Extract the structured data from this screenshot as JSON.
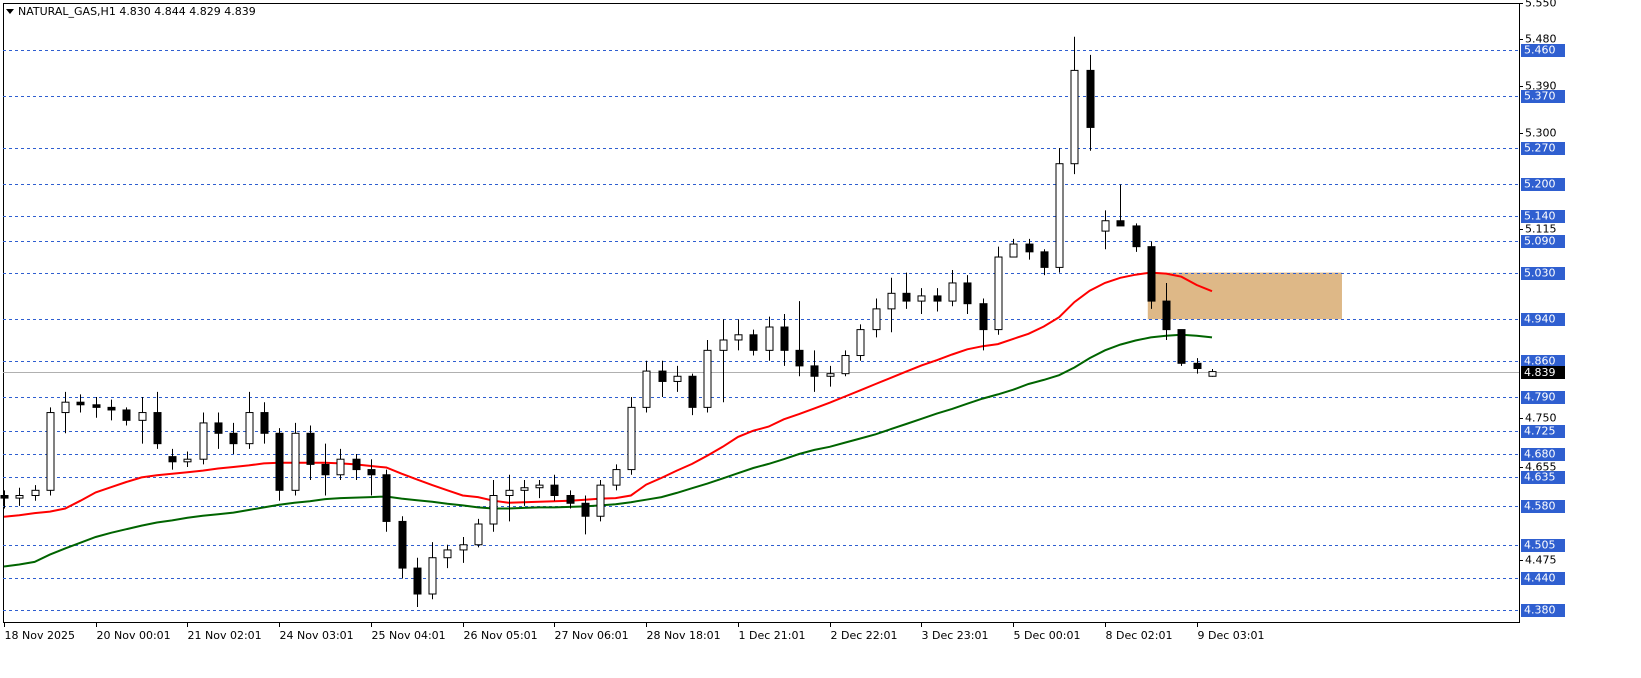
{
  "chart_data": {
    "type": "candlestick",
    "header": "NATURAL_GAS,H1  4.830 4.844 4.829 4.839",
    "categories": [
      "18 Nov 2025",
      null,
      null,
      null,
      null,
      null,
      "20 Nov 00:01",
      null,
      null,
      null,
      null,
      null,
      "21 Nov 02:01",
      null,
      null,
      null,
      null,
      null,
      "24 Nov 03:01",
      null,
      null,
      null,
      null,
      null,
      "25 Nov 04:01",
      null,
      null,
      null,
      null,
      null,
      "26 Nov 05:01",
      null,
      null,
      null,
      null,
      null,
      "27 Nov 06:01",
      null,
      null,
      null,
      null,
      null,
      "28 Nov 18:01",
      null,
      null,
      null,
      null,
      null,
      "1 Dec 21:01",
      null,
      null,
      null,
      null,
      null,
      "2 Dec 22:01",
      null,
      null,
      null,
      null,
      null,
      "3 Dec 23:01",
      null,
      null,
      null,
      null,
      null,
      "5 Dec 00:01",
      null,
      null,
      null,
      null,
      null,
      "8 Dec 02:01",
      null,
      null,
      null,
      null,
      null,
      "9 Dec 03:01",
      null
    ],
    "open": [
      4.6,
      4.595,
      4.6,
      4.61,
      4.76,
      4.78,
      4.775,
      4.77,
      4.765,
      4.745,
      4.76,
      4.675,
      4.665,
      4.67,
      4.74,
      4.72,
      4.7,
      4.76,
      4.72,
      4.61,
      4.72,
      4.66,
      4.64,
      4.67,
      4.65,
      4.64,
      4.55,
      4.46,
      4.41,
      4.48,
      4.495,
      4.505,
      4.545,
      4.6,
      4.61,
      4.615,
      4.62,
      4.6,
      4.585,
      4.56,
      4.62,
      4.65,
      4.77,
      4.84,
      4.82,
      4.83,
      4.77,
      4.88,
      4.9,
      4.91,
      4.88,
      4.925,
      4.88,
      4.85,
      4.83,
      4.835,
      4.87,
      4.92,
      4.96,
      4.99,
      4.975,
      4.985,
      4.975,
      5.01,
      4.97,
      4.92,
      5.06,
      5.085,
      5.07,
      5.04,
      5.24,
      5.42,
      5.11,
      5.13,
      5.12,
      5.08,
      4.975,
      4.92,
      4.855,
      4.83
    ],
    "high": [
      4.61,
      4.615,
      4.62,
      4.77,
      4.8,
      4.795,
      4.79,
      4.785,
      4.77,
      4.79,
      4.8,
      4.69,
      4.685,
      4.76,
      4.76,
      4.74,
      4.8,
      4.78,
      4.73,
      4.74,
      4.735,
      4.7,
      4.69,
      4.68,
      4.67,
      4.65,
      4.56,
      4.48,
      4.51,
      4.505,
      4.52,
      4.555,
      4.63,
      4.64,
      4.63,
      4.63,
      4.64,
      4.61,
      4.6,
      4.63,
      4.66,
      4.79,
      4.86,
      4.86,
      4.85,
      4.835,
      4.9,
      4.94,
      4.94,
      4.92,
      4.945,
      4.95,
      4.975,
      4.88,
      4.85,
      4.88,
      4.93,
      4.98,
      5.02,
      5.03,
      5.0,
      5.0,
      5.035,
      5.025,
      4.98,
      5.08,
      5.095,
      5.095,
      5.075,
      5.27,
      5.485,
      5.45,
      5.15,
      5.2,
      5.125,
      5.09,
      5.01,
      4.92,
      4.865,
      4.844
    ],
    "low": [
      4.575,
      4.58,
      4.59,
      4.6,
      4.72,
      4.76,
      4.75,
      4.745,
      4.735,
      4.7,
      4.69,
      4.65,
      4.655,
      4.66,
      4.69,
      4.68,
      4.69,
      4.7,
      4.59,
      4.6,
      4.63,
      4.6,
      4.63,
      4.63,
      4.6,
      4.53,
      4.44,
      4.385,
      4.4,
      4.46,
      4.47,
      4.5,
      4.53,
      4.55,
      4.58,
      4.595,
      4.59,
      4.575,
      4.525,
      4.55,
      4.61,
      4.64,
      4.76,
      4.79,
      4.8,
      4.755,
      4.76,
      4.78,
      4.88,
      4.87,
      4.86,
      4.85,
      4.83,
      4.8,
      4.81,
      4.83,
      4.86,
      4.905,
      4.915,
      4.96,
      4.95,
      4.955,
      4.965,
      4.95,
      4.88,
      4.91,
      5.06,
      5.055,
      5.025,
      5.03,
      5.22,
      5.265,
      5.075,
      5.12,
      5.07,
      4.96,
      4.9,
      4.85,
      4.835,
      4.829
    ],
    "close": [
      4.595,
      4.6,
      4.61,
      4.76,
      4.78,
      4.775,
      4.77,
      4.765,
      4.745,
      4.76,
      4.7,
      4.665,
      4.67,
      4.74,
      4.72,
      4.7,
      4.76,
      4.72,
      4.61,
      4.72,
      4.66,
      4.64,
      4.67,
      4.65,
      4.64,
      4.55,
      4.46,
      4.41,
      4.48,
      4.495,
      4.505,
      4.545,
      4.6,
      4.61,
      4.615,
      4.62,
      4.6,
      4.585,
      4.56,
      4.62,
      4.65,
      4.77,
      4.84,
      4.82,
      4.83,
      4.77,
      4.88,
      4.9,
      4.91,
      4.88,
      4.925,
      4.88,
      4.85,
      4.83,
      4.835,
      4.87,
      4.92,
      4.96,
      4.99,
      4.975,
      4.985,
      4.975,
      5.01,
      4.97,
      4.92,
      5.06,
      5.085,
      5.07,
      5.04,
      5.24,
      5.42,
      5.31,
      5.13,
      5.12,
      5.08,
      4.975,
      4.92,
      4.855,
      4.845,
      4.839
    ],
    "moving_averages": [
      {
        "color": "#ff0000",
        "values": [
          4.559,
          4.562,
          4.566,
          4.569,
          4.575,
          4.59,
          4.606,
          4.616,
          4.626,
          4.635,
          4.639,
          4.642,
          4.645,
          4.648,
          4.652,
          4.655,
          4.658,
          4.662,
          4.663,
          4.663,
          4.663,
          4.663,
          4.662,
          4.66,
          4.657,
          4.654,
          4.642,
          4.631,
          4.62,
          4.61,
          4.6,
          4.597,
          4.59,
          4.586,
          4.587,
          4.588,
          4.589,
          4.59,
          4.592,
          4.594,
          4.595,
          4.6,
          4.621,
          4.634,
          4.648,
          4.661,
          4.677,
          4.694,
          4.713,
          4.725,
          4.733,
          4.747,
          4.757,
          4.768,
          4.779,
          4.791,
          4.803,
          4.815,
          4.827,
          4.839,
          4.851,
          4.861,
          4.872,
          4.882,
          4.888,
          4.892,
          4.902,
          4.912,
          4.926,
          4.944,
          4.973,
          4.995,
          5.01,
          5.02,
          5.026,
          5.03,
          5.028,
          5.022,
          5.006,
          4.994
        ]
      },
      {
        "color": "#006400",
        "values": [
          4.463,
          4.467,
          4.472,
          4.486,
          4.498,
          4.509,
          4.52,
          4.528,
          4.535,
          4.542,
          4.548,
          4.552,
          4.557,
          4.561,
          4.564,
          4.567,
          4.572,
          4.577,
          4.582,
          4.586,
          4.589,
          4.593,
          4.595,
          4.596,
          4.597,
          4.598,
          4.594,
          4.591,
          4.588,
          4.584,
          4.581,
          4.577,
          4.575,
          4.575,
          4.576,
          4.577,
          4.577,
          4.578,
          4.579,
          4.581,
          4.583,
          4.587,
          4.592,
          4.597,
          4.605,
          4.614,
          4.623,
          4.633,
          4.643,
          4.653,
          4.661,
          4.67,
          4.68,
          4.688,
          4.694,
          4.702,
          4.71,
          4.718,
          4.728,
          4.738,
          4.748,
          4.758,
          4.767,
          4.777,
          4.787,
          4.795,
          4.804,
          4.815,
          4.823,
          4.832,
          4.847,
          4.865,
          4.88,
          4.891,
          4.899,
          4.905,
          4.908,
          4.91,
          4.908,
          4.905
        ]
      }
    ],
    "zone": {
      "color": "#deb887",
      "x": [
        74.8,
        87.5
      ],
      "y": [
        4.94,
        5.03
      ]
    },
    "ylim": [
      4.356,
      5.55
    ],
    "yticks": [
      {
        "value": 5.55,
        "label": "5.550"
      },
      {
        "value": 5.48,
        "label": "5.480"
      },
      {
        "value": 5.39,
        "label": "5.390"
      },
      {
        "value": 5.3,
        "label": "5.300"
      },
      5.115,
      {
        "value": 4.75,
        "label": "4.750"
      },
      4.655,
      4.475
    ],
    "levels": [
      {
        "value": 5.46,
        "label": "5.460"
      },
      {
        "value": 5.37,
        "label": "5.370"
      },
      {
        "value": 5.27,
        "label": "5.270"
      },
      {
        "value": 5.2,
        "label": "5.200"
      },
      {
        "value": 5.14,
        "label": "5.140"
      },
      {
        "value": 5.09,
        "label": "5.090"
      },
      {
        "value": 5.03,
        "label": "5.030"
      },
      {
        "value": 4.94,
        "label": "4.940"
      },
      {
        "value": 4.86,
        "label": "4.860"
      },
      {
        "value": 4.79,
        "label": "4.790"
      },
      4.725,
      {
        "value": 4.68,
        "label": "4.680"
      },
      4.635,
      {
        "value": 4.58,
        "label": "4.580"
      },
      4.505,
      {
        "value": 4.44,
        "label": "4.440"
      },
      {
        "value": 4.38,
        "label": "4.380"
      }
    ],
    "level_color": "#2f5fd0",
    "last_price": 4.839
  }
}
